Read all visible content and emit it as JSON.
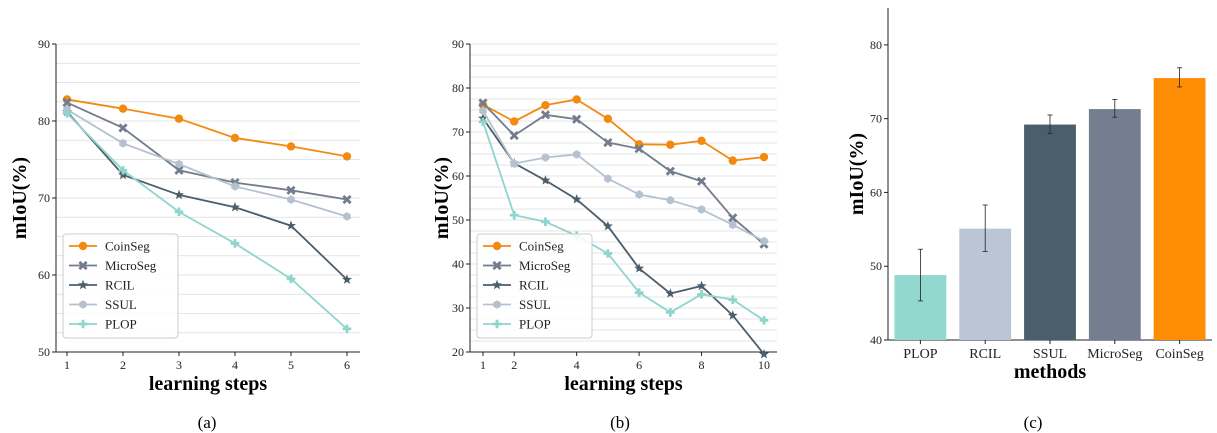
{
  "chart_data": [
    {
      "type": "line",
      "caption": "(a)",
      "xlabel": "learning steps",
      "ylabel": "mIoU(%)",
      "xlim": [
        1,
        6
      ],
      "ylim": [
        50,
        90
      ],
      "x": [
        1,
        2,
        3,
        4,
        5,
        6
      ],
      "xticks": [
        1,
        2,
        3,
        4,
        5,
        6
      ],
      "yticks": [
        50,
        60,
        70,
        80,
        90
      ],
      "grid": "horizontal",
      "legend_position": "lower-left",
      "series": [
        {
          "name": "CoinSeg",
          "color": "#f28a10",
          "marker": "circle",
          "values": [
            82.8,
            81.6,
            80.3,
            77.8,
            76.7,
            75.4
          ]
        },
        {
          "name": "MicroSeg",
          "color": "#737c8c",
          "marker": "x",
          "values": [
            82.4,
            79.1,
            73.6,
            72.0,
            71.0,
            69.8
          ]
        },
        {
          "name": "RCIL",
          "color": "#4b5e6b",
          "marker": "star",
          "values": [
            81.2,
            73.0,
            70.4,
            68.8,
            66.4,
            59.4
          ]
        },
        {
          "name": "SSUL",
          "color": "#b6c1cf",
          "marker": "hexagon",
          "values": [
            81.5,
            77.1,
            74.4,
            71.5,
            69.8,
            67.6
          ]
        },
        {
          "name": "PLOP",
          "color": "#8fd5cc",
          "marker": "plus",
          "values": [
            81.0,
            73.6,
            68.2,
            64.1,
            59.5,
            53.0
          ]
        }
      ]
    },
    {
      "type": "line",
      "caption": "(b)",
      "xlabel": "learning steps",
      "ylabel": "mIoU(%)",
      "xlim": [
        1,
        10
      ],
      "ylim": [
        20,
        90
      ],
      "x": [
        1,
        2,
        3,
        4,
        5,
        6,
        7,
        8,
        9,
        10
      ],
      "xticks": [
        1,
        2,
        4,
        6,
        8,
        10
      ],
      "yticks": [
        20,
        30,
        40,
        50,
        60,
        70,
        80,
        90
      ],
      "grid": "horizontal",
      "legend_position": "lower-left",
      "series": [
        {
          "name": "CoinSeg",
          "color": "#f28a10",
          "marker": "circle",
          "values": [
            76.2,
            72.4,
            76.1,
            77.4,
            73.0,
            67.2,
            67.1,
            68.0,
            63.5,
            64.3
          ]
        },
        {
          "name": "MicroSeg",
          "color": "#737c8c",
          "marker": "x",
          "values": [
            76.6,
            69.2,
            73.9,
            72.9,
            67.6,
            66.2,
            61.1,
            58.8,
            50.5,
            44.5
          ]
        },
        {
          "name": "RCIL",
          "color": "#4b5e6b",
          "marker": "star",
          "values": [
            73.1,
            62.9,
            59.0,
            54.7,
            48.6,
            39.0,
            33.3,
            35.0,
            28.3,
            19.5
          ]
        },
        {
          "name": "SSUL",
          "color": "#b6c1cf",
          "marker": "hexagon",
          "values": [
            74.8,
            62.8,
            64.2,
            64.9,
            59.4,
            55.8,
            54.5,
            52.4,
            48.9,
            45.2
          ]
        },
        {
          "name": "PLOP",
          "color": "#8fd5cc",
          "marker": "plus",
          "values": [
            72.3,
            51.1,
            49.6,
            46.4,
            42.4,
            33.5,
            29.0,
            33.1,
            31.9,
            27.2
          ]
        }
      ]
    },
    {
      "type": "bar",
      "caption": "(c)",
      "xlabel": "methods",
      "ylabel": "mIoU(%)",
      "ylim": [
        40,
        85
      ],
      "yticks": [
        40,
        50,
        60,
        70,
        80
      ],
      "grid": "off",
      "categories": [
        "PLOP",
        "RCIL",
        "SSUL",
        "MicroSeg",
        "CoinSeg"
      ],
      "values": [
        48.8,
        55.1,
        69.2,
        71.3,
        75.5
      ],
      "error_low": [
        45.3,
        52.0,
        68.0,
        70.2,
        74.3
      ],
      "error_high": [
        52.3,
        58.3,
        70.5,
        72.6,
        76.9
      ],
      "colors": [
        "#93d8cf",
        "#bac6d6",
        "#4a5f6b",
        "#737f90",
        "#ff8c05"
      ]
    }
  ]
}
